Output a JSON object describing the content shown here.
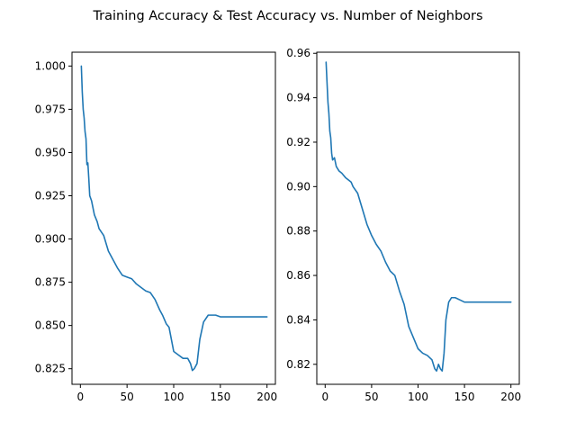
{
  "figure": {
    "title": "Training Accuracy & Test Accuracy vs. Number of Neighbors"
  },
  "colors": {
    "background": "#ffffff",
    "line": "#1f77b4",
    "axes": "#000000"
  },
  "chart_data": [
    {
      "type": "line",
      "title": "",
      "xlabel": "",
      "ylabel": "",
      "xlim": [
        -9,
        209
      ],
      "ylim": [
        0.816,
        1.008
      ],
      "grid": false,
      "xticks": [
        0,
        50,
        100,
        150,
        200
      ],
      "yticks": [
        0.825,
        0.85,
        0.875,
        0.9,
        0.925,
        0.95,
        0.975,
        1.0
      ],
      "ytick_labels": [
        "0.825",
        "0.850",
        "0.875",
        "0.900",
        "0.925",
        "0.950",
        "0.975",
        "1.000"
      ],
      "series": [
        {
          "name": "",
          "color": "#1f77b4",
          "x": [
            1,
            2,
            3,
            4,
            5,
            6,
            7,
            8,
            9,
            10,
            12,
            15,
            18,
            20,
            25,
            30,
            35,
            40,
            45,
            50,
            55,
            60,
            65,
            70,
            75,
            80,
            85,
            88,
            92,
            95,
            100,
            105,
            110,
            115,
            118,
            120,
            122,
            125,
            128,
            132,
            137,
            140,
            145,
            150,
            160,
            170,
            180,
            190,
            200
          ],
          "y": [
            1.0,
            0.985,
            0.975,
            0.97,
            0.962,
            0.958,
            0.943,
            0.944,
            0.935,
            0.925,
            0.922,
            0.914,
            0.91,
            0.906,
            0.902,
            0.893,
            0.888,
            0.883,
            0.879,
            0.878,
            0.877,
            0.874,
            0.872,
            0.87,
            0.869,
            0.865,
            0.859,
            0.856,
            0.851,
            0.849,
            0.835,
            0.833,
            0.831,
            0.831,
            0.828,
            0.824,
            0.825,
            0.828,
            0.842,
            0.852,
            0.856,
            0.856,
            0.856,
            0.855,
            0.855,
            0.855,
            0.855,
            0.855,
            0.855
          ]
        }
      ]
    },
    {
      "type": "line",
      "title": "",
      "xlabel": "",
      "ylabel": "",
      "xlim": [
        -9,
        209
      ],
      "ylim": [
        0.811,
        0.9605
      ],
      "grid": false,
      "xticks": [
        0,
        50,
        100,
        150,
        200
      ],
      "yticks": [
        0.82,
        0.84,
        0.86,
        0.88,
        0.9,
        0.92,
        0.94,
        0.96
      ],
      "ytick_labels": [
        "0.82",
        "0.84",
        "0.86",
        "0.88",
        "0.90",
        "0.92",
        "0.94",
        "0.96"
      ],
      "series": [
        {
          "name": "",
          "color": "#1f77b4",
          "x": [
            1,
            2,
            3,
            4,
            5,
            6,
            7,
            8,
            10,
            12,
            15,
            18,
            20,
            22,
            25,
            28,
            30,
            35,
            40,
            45,
            50,
            55,
            60,
            65,
            70,
            75,
            80,
            85,
            90,
            95,
            100,
            105,
            110,
            115,
            118,
            120,
            122,
            124,
            126,
            128,
            130,
            133,
            136,
            140,
            145,
            150,
            160,
            170,
            180,
            190,
            200
          ],
          "y": [
            0.956,
            0.947,
            0.938,
            0.933,
            0.925,
            0.922,
            0.915,
            0.912,
            0.913,
            0.909,
            0.907,
            0.906,
            0.905,
            0.904,
            0.903,
            0.902,
            0.9,
            0.897,
            0.89,
            0.883,
            0.878,
            0.874,
            0.871,
            0.866,
            0.862,
            0.86,
            0.853,
            0.847,
            0.837,
            0.832,
            0.827,
            0.825,
            0.824,
            0.822,
            0.818,
            0.817,
            0.82,
            0.818,
            0.817,
            0.825,
            0.84,
            0.848,
            0.85,
            0.85,
            0.849,
            0.848,
            0.848,
            0.848,
            0.848,
            0.848,
            0.848
          ]
        }
      ]
    }
  ]
}
